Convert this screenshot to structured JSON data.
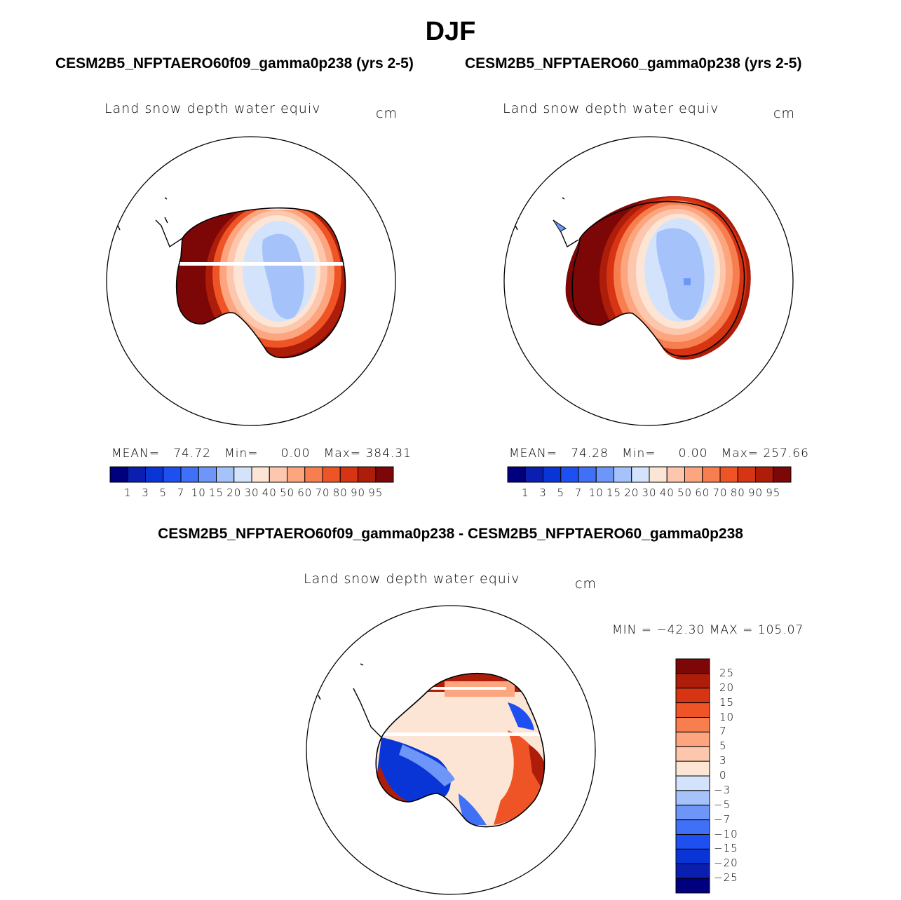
{
  "figure": {
    "season": "DJF",
    "case_left": "CESM2B5_NFPTAERO60f09_gamma0p238 (yrs 2-5)",
    "case_right": "CESM2B5_NFPTAERO60_gamma0p238 (yrs 2-5)",
    "diff_title": "CESM2B5_NFPTAERO60f09_gamma0p238 - CESM2B5_NFPTAERO60_gamma0p238"
  },
  "panels": {
    "left": {
      "field": "Land snow depth water equiv",
      "units": "cm",
      "mean_label": "MEAN=",
      "mean": "74.72",
      "min_label": "Min=",
      "min": "0.00",
      "max_label": "Max=",
      "max": "384.31"
    },
    "right": {
      "field": "Land snow depth water equiv",
      "units": "cm",
      "mean_label": "MEAN=",
      "mean": "74.28",
      "min_label": "Min=",
      "min": "0.00",
      "max_label": "Max=",
      "max": "257.66"
    },
    "diff": {
      "field": "Land snow depth water equiv",
      "units": "cm",
      "minmax": "MIN = −42.30  MAX = 105.07"
    }
  },
  "colorbars": {
    "abs_labels": [
      "1",
      "3",
      "5",
      "7",
      "10",
      "15",
      "20",
      "30",
      "40",
      "50",
      "60",
      "70",
      "80",
      "90",
      "95"
    ],
    "abs_colors": [
      "#00007f",
      "#0a1fb0",
      "#0a35d6",
      "#1e4ff0",
      "#3f70f5",
      "#6d96f8",
      "#a6c2fb",
      "#d3e3fb",
      "#fde5d6",
      "#fdc7ad",
      "#fca57f",
      "#f77e4e",
      "#ee5426",
      "#d63412",
      "#ad1d0a",
      "#7d0707"
    ],
    "diff_labels": [
      "25",
      "20",
      "15",
      "10",
      "7",
      "5",
      "3",
      "0",
      "−3",
      "−5",
      "−7",
      "−10",
      "−15",
      "−20",
      "−25"
    ],
    "diff_colors": [
      "#7d0707",
      "#ad1d0a",
      "#d63412",
      "#ee5426",
      "#f77e4e",
      "#fca57f",
      "#fdc7ad",
      "#fde5d6",
      "#d3e3fb",
      "#a6c2fb",
      "#6d96f8",
      "#3f70f5",
      "#1e4ff0",
      "#0a35d6",
      "#0a1fb0",
      "#00007f"
    ]
  }
}
